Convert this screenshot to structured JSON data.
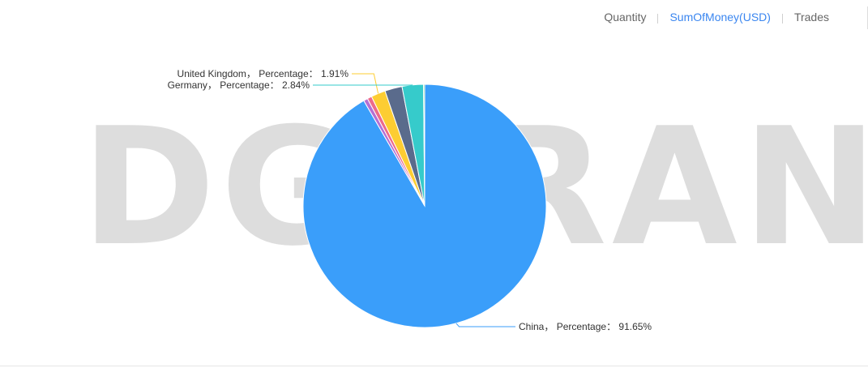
{
  "tabs": [
    {
      "label": "Quantity",
      "active": false
    },
    {
      "label": "SumOfMoney(USD)",
      "active": true
    },
    {
      "label": "Trades",
      "active": false
    }
  ],
  "watermark": "DGCRANE",
  "chart_data": {
    "type": "pie",
    "label_format": "{name}， Percentage： {value}%",
    "slices": [
      {
        "name": "China",
        "value": 91.65,
        "color": "#3a9efa",
        "labeled": true
      },
      {
        "name": "",
        "value": 0.55,
        "color": "#b56fd4",
        "labeled": false
      },
      {
        "name": "",
        "value": 0.6,
        "color": "#ee6b8a",
        "labeled": false
      },
      {
        "name": "United Kingdom",
        "value": 1.91,
        "color": "#fdcd32",
        "labeled": true
      },
      {
        "name": "",
        "value": 2.3,
        "color": "#5a6b8c",
        "labeled": false
      },
      {
        "name": "Germany",
        "value": 2.84,
        "color": "#36cbcb",
        "labeled": true
      },
      {
        "name": "",
        "value": 0.15,
        "color": "#4ecb73",
        "labeled": false
      }
    ]
  }
}
